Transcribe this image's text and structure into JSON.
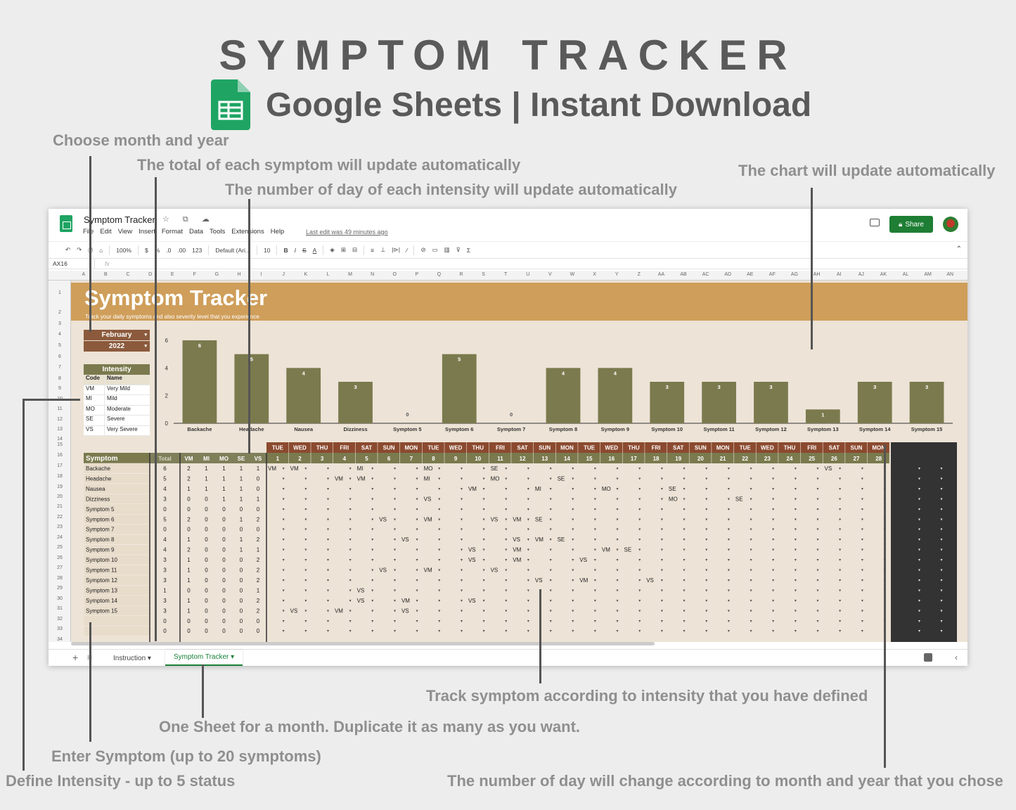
{
  "hero": {
    "title": "SYMPTOM TRACKER",
    "subtitle": "Google Sheets | Instant Download"
  },
  "annotations": {
    "choose_month": "Choose month and year",
    "total": "The total of each symptom will update automatically",
    "number_of_day": "The number of day of each intensity will update automatically",
    "chart_update": "The chart will update automatically",
    "track": "Track symptom according to intensity that you have defined",
    "one_sheet": "One Sheet for a month. Duplicate it as many as you want.",
    "enter_symptom": "Enter Symptom (up to 20 symptoms)",
    "define_intensity": "Define Intensity - up to 5 status",
    "day_change": "The number of day will change according to month and year that you chose"
  },
  "window": {
    "doc_title": "Symptom Tracker",
    "menu": [
      "File",
      "Edit",
      "View",
      "Insert",
      "Format",
      "Data",
      "Tools",
      "Extensions",
      "Help"
    ],
    "last_edit": "Last edit was 49 minutes ago",
    "share_label": "Share",
    "toolbar": {
      "zoom": "100%",
      "currency": "$",
      "percent": "%",
      "dec_less": ".0",
      "dec_more": ".00",
      "format": "123",
      "font": "Default (Ari...",
      "size": "10"
    },
    "cell_ref": "AX16",
    "fx": "fx",
    "columns": [
      "A",
      "B",
      "C",
      "D",
      "E",
      "F",
      "G",
      "H",
      "I",
      "J",
      "K",
      "L",
      "M",
      "N",
      "O",
      "P",
      "Q",
      "R",
      "S",
      "T",
      "U",
      "V",
      "W",
      "X",
      "Y",
      "Z",
      "AA",
      "AB",
      "AC",
      "AD",
      "AE",
      "AF",
      "AG",
      "AH",
      "AI",
      "AJ",
      "AK",
      "AL",
      "AM",
      "AN"
    ],
    "rows": [
      "1",
      "2",
      "3",
      "4",
      "5",
      "6",
      "7",
      "8",
      "9",
      "10",
      "11",
      "12",
      "13",
      "14",
      "15",
      "16",
      "17",
      "18",
      "19",
      "20",
      "21",
      "22",
      "23",
      "24",
      "25",
      "26",
      "27",
      "28",
      "29",
      "30",
      "31",
      "32",
      "33",
      "34"
    ],
    "tabs": [
      "Instruction",
      "Symptom Tracker"
    ]
  },
  "sheet": {
    "title": "Symptom Tracker",
    "subtitle": "Track your daily symptoms and also severity level that you experience",
    "month": "February",
    "year": "2022",
    "intensity_title": "Intensity",
    "intensity_head": [
      "Code",
      "Name"
    ],
    "intensity": [
      {
        "code": "VM",
        "name": "Very Mild"
      },
      {
        "code": "MI",
        "name": "Mild"
      },
      {
        "code": "MO",
        "name": "Moderate"
      },
      {
        "code": "SE",
        "name": "Severe"
      },
      {
        "code": "VS",
        "name": "Very Severe"
      }
    ],
    "table_head": [
      "Symptom",
      "Total",
      "VM",
      "MI",
      "MO",
      "SE",
      "VS"
    ],
    "weekdays": [
      "TUE",
      "WED",
      "THU",
      "FRI",
      "SAT",
      "SUN",
      "MON",
      "TUE",
      "WED",
      "THU",
      "FRI",
      "SAT",
      "SUN",
      "MON",
      "TUE",
      "WED",
      "THU",
      "FRI",
      "SAT",
      "SUN",
      "MON",
      "TUE",
      "WED",
      "THU",
      "FRI",
      "SAT",
      "SUN",
      "MON"
    ],
    "days": [
      "1",
      "2",
      "3",
      "4",
      "5",
      "6",
      "7",
      "8",
      "9",
      "10",
      "11",
      "12",
      "13",
      "14",
      "15",
      "16",
      "17",
      "18",
      "19",
      "20",
      "21",
      "22",
      "23",
      "24",
      "25",
      "26",
      "27",
      "28"
    ],
    "symptoms": [
      {
        "name": "Backache",
        "counts": [
          "6",
          "2",
          "1",
          "1",
          "1",
          "1"
        ],
        "entries": {
          "0": "VM",
          "1": "VM",
          "4": "MI",
          "7": "MO",
          "10": "SE",
          "25": "VS"
        }
      },
      {
        "name": "Headache",
        "counts": [
          "5",
          "2",
          "1",
          "1",
          "1",
          "0"
        ],
        "entries": {
          "3": "VM",
          "4": "VM",
          "7": "MI",
          "10": "MO",
          "13": "SE"
        }
      },
      {
        "name": "Nausea",
        "counts": [
          "4",
          "1",
          "1",
          "1",
          "1",
          "0"
        ],
        "entries": {
          "9": "VM",
          "12": "MI",
          "15": "MO",
          "18": "SE"
        }
      },
      {
        "name": "Dizziness",
        "counts": [
          "3",
          "0",
          "0",
          "1",
          "1",
          "1"
        ],
        "entries": {
          "7": "VS",
          "18": "MO",
          "21": "SE"
        }
      },
      {
        "name": "Symptom 5",
        "counts": [
          "0",
          "0",
          "0",
          "0",
          "0",
          "0"
        ],
        "entries": {}
      },
      {
        "name": "Symptom 6",
        "counts": [
          "5",
          "2",
          "0",
          "0",
          "1",
          "2"
        ],
        "entries": {
          "5": "VS",
          "7": "VM",
          "10": "VS",
          "11": "VM",
          "12": "SE"
        }
      },
      {
        "name": "Symptom 7",
        "counts": [
          "0",
          "0",
          "0",
          "0",
          "0",
          "0"
        ],
        "entries": {}
      },
      {
        "name": "Symptom 8",
        "counts": [
          "4",
          "1",
          "0",
          "0",
          "1",
          "2"
        ],
        "entries": {
          "6": "VS",
          "11": "VS",
          "12": "VM",
          "13": "SE"
        }
      },
      {
        "name": "Symptom 9",
        "counts": [
          "4",
          "2",
          "0",
          "0",
          "1",
          "1"
        ],
        "entries": {
          "9": "VS",
          "11": "VM",
          "15": "VM",
          "16": "SE"
        }
      },
      {
        "name": "Symptom 10",
        "counts": [
          "3",
          "1",
          "0",
          "0",
          "0",
          "2"
        ],
        "entries": {
          "9": "VS",
          "11": "VM",
          "14": "VS"
        }
      },
      {
        "name": "Symptom 11",
        "counts": [
          "3",
          "1",
          "0",
          "0",
          "0",
          "2"
        ],
        "entries": {
          "5": "VS",
          "7": "VM",
          "10": "VS"
        }
      },
      {
        "name": "Symptom 12",
        "counts": [
          "3",
          "1",
          "0",
          "0",
          "0",
          "2"
        ],
        "entries": {
          "12": "VS",
          "14": "VM",
          "17": "VS"
        }
      },
      {
        "name": "Symptom 13",
        "counts": [
          "1",
          "0",
          "0",
          "0",
          "0",
          "1"
        ],
        "entries": {
          "4": "VS"
        }
      },
      {
        "name": "Symptom 14",
        "counts": [
          "3",
          "1",
          "0",
          "0",
          "0",
          "2"
        ],
        "entries": {
          "4": "VS",
          "6": "VM",
          "9": "VS"
        }
      },
      {
        "name": "Symptom 15",
        "counts": [
          "3",
          "1",
          "0",
          "0",
          "0",
          "2"
        ],
        "entries": {
          "1": "VS",
          "3": "VM",
          "6": "VS"
        }
      },
      {
        "name": "",
        "counts": [
          "0",
          "0",
          "0",
          "0",
          "0",
          "0"
        ],
        "entries": {}
      },
      {
        "name": "",
        "counts": [
          "0",
          "0",
          "0",
          "0",
          "0",
          "0"
        ],
        "entries": {}
      }
    ]
  },
  "chart_data": {
    "type": "bar",
    "categories": [
      "Backache",
      "Headache",
      "Nausea",
      "Dizziness",
      "Symptom 5",
      "Symptom 6",
      "Symptom 7",
      "Symptom 8",
      "Symptom 9",
      "Symptom 10",
      "Symptom 11",
      "Symptom 12",
      "Symptom 13",
      "Symptom 14",
      "Symptom 15"
    ],
    "values": [
      6,
      5,
      4,
      3,
      0,
      5,
      0,
      4,
      4,
      3,
      3,
      3,
      1,
      3,
      3
    ],
    "ylim": [
      0,
      6
    ],
    "yticks": [
      "0",
      "2",
      "4",
      "6"
    ],
    "bar_color": "#7a7a4e",
    "grid": false
  },
  "colors": {
    "banner": "#cf9e5a",
    "selector": "#8b5a3c",
    "olive": "#7a7a4e",
    "header_red": "#8b4a2f",
    "sheet_bg": "#ede3d6"
  }
}
